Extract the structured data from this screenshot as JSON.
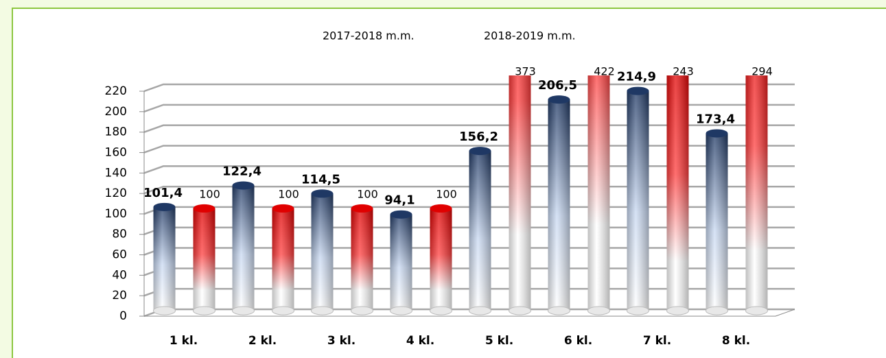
{
  "chart_data": {
    "type": "bar3d",
    "categories": [
      "1 kl.",
      "2 kl.",
      "3 kl.",
      "4 kl.",
      "5 kl.",
      "6 kl.",
      "7 kl.",
      "8 kl."
    ],
    "series": [
      {
        "name": "2017-2018 m.m.",
        "color": "#1f3864",
        "values": [
          101.4,
          122.4,
          114.5,
          94.1,
          156.2,
          206.5,
          214.9,
          173.4
        ],
        "value_labels": [
          "101,4",
          "122,4",
          "114,5",
          "94,1",
          "156,2",
          "206,5",
          "214,9",
          "173,4"
        ]
      },
      {
        "name": "2018-2019 m.m.",
        "color": "#e00000",
        "values": [
          100,
          100,
          100,
          100,
          373,
          422,
          243,
          294
        ]
      }
    ],
    "ylim": [
      0,
      220
    ],
    "yticks": [
      0,
      20,
      40,
      60,
      80,
      100,
      120,
      140,
      160,
      180,
      200,
      220
    ],
    "grid": true
  }
}
